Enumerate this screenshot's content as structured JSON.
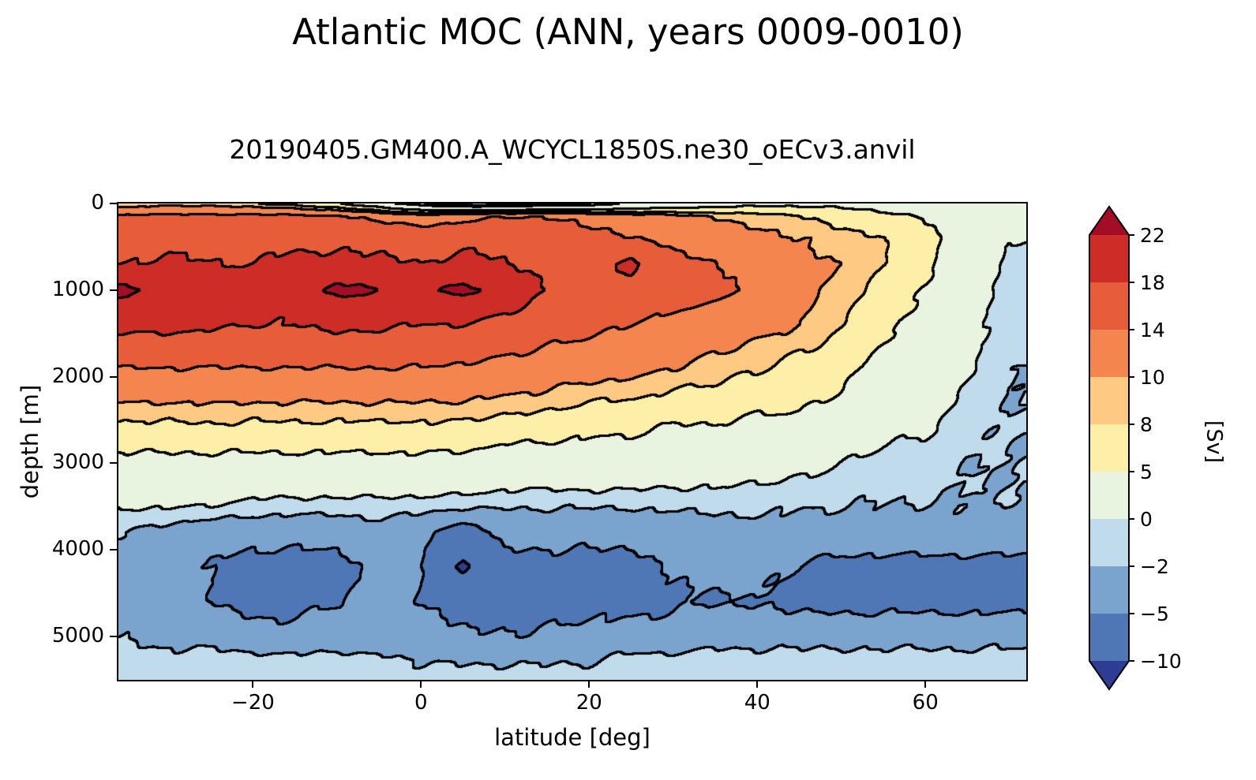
{
  "chart_data": {
    "type": "heatmap",
    "subtype": "filled-contour",
    "title": "Atlantic MOC (ANN, years 0009-0010)",
    "subtitle": "20190405.GM400.A_WCYCL1850S.ne30_oECv3.anvil",
    "xlabel": "latitude [deg]",
    "ylabel": "depth [m]",
    "colorbar_label": "[Sv]",
    "x_range": [
      -36,
      72
    ],
    "y_range": [
      0,
      5500
    ],
    "y_axis_inverted": true,
    "grid_lines": false,
    "x_ticks": {
      "values": [
        -20,
        0,
        20,
        40,
        60
      ],
      "labels": [
        "−20",
        "0",
        "20",
        "40",
        "60"
      ]
    },
    "y_ticks": {
      "values": [
        0,
        1000,
        2000,
        3000,
        4000,
        5000
      ],
      "labels": [
        "0",
        "1000",
        "2000",
        "3000",
        "4000",
        "5000"
      ]
    },
    "contour_levels_sv": [
      -10,
      -5,
      -2,
      0,
      5,
      8,
      10,
      14,
      18,
      22
    ],
    "colorbar_ticks_top_to_bottom": [
      "22",
      "18",
      "14",
      "10",
      "8",
      "5",
      "0",
      "−2",
      "−5",
      "−10"
    ],
    "band_colors_low_to_high": [
      "#2e3c94",
      "#4f77b6",
      "#7aa3ce",
      "#c0dcec",
      "#e8f3e0",
      "#fdefa7",
      "#fdc983",
      "#f5854f",
      "#e75d3a",
      "#cd2d26",
      "#a30e26"
    ],
    "contour_line_color": "#000000",
    "colorbar_extend": "both",
    "grid": {
      "lat_deg": [
        -35,
        -30,
        -25,
        -20,
        -15,
        -10,
        -5,
        0,
        5,
        10,
        15,
        20,
        25,
        30,
        35,
        40,
        45,
        50,
        55,
        60,
        65,
        70
      ],
      "depth_m": [
        0,
        150,
        400,
        700,
        1000,
        1400,
        1900,
        2400,
        3000,
        3500,
        3800,
        4200,
        4600,
        5000,
        5300,
        5500
      ],
      "psi_sv": [
        [
          8,
          9,
          9,
          8,
          7,
          5,
          2,
          -2,
          -4,
          -4,
          -3,
          -2,
          0.5,
          2,
          3,
          4,
          4.2,
          4,
          3,
          2,
          1,
          0.3
        ],
        [
          15,
          15,
          15,
          15,
          15,
          14.5,
          13,
          12,
          13,
          14,
          14,
          13,
          12,
          11,
          10,
          9,
          8.2,
          7,
          6,
          5,
          3,
          1
        ],
        [
          17,
          17,
          17,
          17,
          17,
          17,
          17,
          16.5,
          17,
          17,
          16,
          15,
          14,
          13,
          12,
          11,
          10,
          9,
          8.2,
          6,
          3,
          0.2
        ],
        [
          18,
          18.5,
          18,
          18,
          19,
          19,
          18.5,
          18,
          19,
          18,
          17,
          16,
          19,
          15,
          14,
          12.5,
          11,
          10,
          8,
          6,
          3,
          -1
        ],
        [
          23,
          20,
          19,
          19,
          20,
          23,
          22,
          21,
          23,
          20,
          18,
          17,
          16.5,
          16,
          15,
          13,
          11,
          9,
          7,
          5,
          2,
          -1
        ],
        [
          19,
          19,
          18.5,
          18,
          18,
          19,
          18.5,
          18,
          18,
          17,
          16,
          15,
          14,
          13,
          12,
          11,
          10,
          8,
          6,
          4,
          1,
          -1
        ],
        [
          14,
          14,
          14,
          14,
          14,
          14,
          14,
          14,
          13.5,
          13,
          12,
          11.5,
          11,
          10,
          9,
          8.3,
          7,
          6,
          4,
          2,
          0.3,
          -2
        ],
        [
          9,
          9,
          9.2,
          9,
          9,
          9,
          9,
          9,
          9,
          8.3,
          8.1,
          7,
          7,
          6,
          6,
          5.2,
          5.1,
          4,
          2,
          1,
          -1,
          -2
        ],
        [
          4,
          4,
          4,
          4,
          4,
          4,
          4,
          4,
          4,
          3,
          3,
          3,
          3,
          2,
          2,
          1.2,
          1,
          0.1,
          -1,
          -1,
          -2,
          -2
        ],
        [
          0.2,
          0.2,
          0,
          -0.8,
          -1,
          -1,
          -1,
          -1.2,
          -1.4,
          -1.8,
          -1.8,
          -1.8,
          -1.8,
          -1.6,
          -1.4,
          -1.5,
          -1.8,
          -1.9,
          -2.1,
          -2.1,
          -2.1,
          -2.1
        ],
        [
          -2,
          -3,
          -4,
          -4,
          -4,
          -4,
          -3,
          -4,
          -7,
          -4,
          -4,
          -4,
          -4,
          -4,
          -3,
          -3,
          -3,
          -3,
          -3,
          -3,
          -3,
          -3
        ],
        [
          -3,
          -4,
          -5.2,
          -6,
          -6,
          -6,
          -4,
          -5,
          -11,
          -6,
          -6,
          -6,
          -6,
          -4.6,
          -4,
          -4,
          -5.2,
          -6,
          -6,
          -6,
          -6,
          -6
        ],
        [
          -3,
          -4,
          -5,
          -6,
          -6,
          -5,
          -4,
          -5,
          -6,
          -6,
          -6,
          -6,
          -6,
          -5.4,
          -5.2,
          -5.1,
          -6,
          -6,
          -6,
          -6,
          -6,
          -6
        ],
        [
          -2,
          -3,
          -3,
          -4,
          -4,
          -4,
          -4,
          -4,
          -4.8,
          -4.8,
          -4.8,
          -4,
          -4,
          -4,
          -3,
          -3,
          -3,
          -3,
          -3,
          -3,
          -3,
          -3
        ],
        [
          -1,
          -1,
          -1,
          -1,
          -1,
          -1,
          -1,
          -2.2,
          -2.2,
          -2.2,
          -2.2,
          -2.2,
          -1,
          -1,
          -1,
          -1,
          -1,
          -1,
          -1,
          -1,
          -1,
          -1
        ],
        [
          -1,
          -1,
          -1,
          -1,
          -1,
          -1,
          -1,
          -1,
          -1,
          -1,
          -1,
          -1,
          -1,
          -1,
          -1,
          -1,
          -1,
          -1,
          -1,
          -1,
          -1,
          -1
        ]
      ]
    }
  }
}
